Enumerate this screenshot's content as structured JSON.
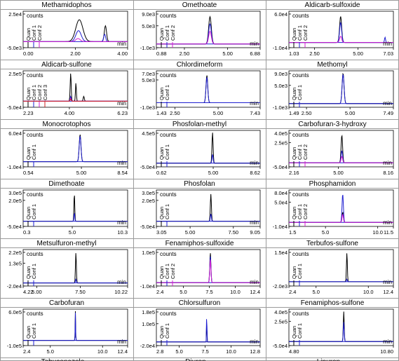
{
  "y_unit_label": "counts",
  "x_unit_label": "min",
  "colors": {
    "quan": "#000000",
    "conf1": "#1f1fd0",
    "conf2": "#d21fd2",
    "conf3": "#cc2222",
    "title_bg": "#ffffff",
    "grid_line": "#9a9a9a"
  },
  "bottom_row_partial_labels": [
    "Tebuconazole ...",
    "Diuron ...",
    "Linuron ..."
  ],
  "chart_data": [
    {
      "type": "line",
      "title": "Methamidophos",
      "x_ticks": [
        "0.00",
        "2.00",
        "4.00"
      ],
      "xlim": [
        0.0,
        4.0
      ],
      "y_ticks": [
        "2.5e4",
        "-5.0e3"
      ],
      "ylim": [
        -5000,
        25000
      ],
      "legend": [
        "Quan",
        "Conf 1",
        "Conf 2"
      ],
      "series": [
        {
          "name": "Quan",
          "peaks": [
            {
              "rt": 2.15,
              "height": 18000,
              "width": 0.32
            },
            {
              "rt": 3.15,
              "height": 13000,
              "width": 0.1
            }
          ]
        },
        {
          "name": "Conf 1",
          "peaks": [
            {
              "rt": 2.12,
              "height": 9000,
              "width": 0.24
            },
            {
              "rt": 3.12,
              "height": 6000,
              "width": 0.09
            }
          ]
        },
        {
          "name": "Conf 2",
          "peaks": [
            {
              "rt": 2.1,
              "height": 2500,
              "width": 0.2
            }
          ]
        }
      ]
    },
    {
      "type": "line",
      "title": "Omethoate",
      "x_ticks": [
        "0.88",
        "2.50",
        "5.00",
        "6.88"
      ],
      "xlim": [
        0.88,
        6.88
      ],
      "y_ticks": [
        "9.0e3",
        "5.0e3",
        "-1.0e3"
      ],
      "ylim": [
        -1000,
        9000
      ],
      "legend": [
        "Quan",
        "Conf 1",
        "Conf 2"
      ],
      "series": [
        {
          "name": "Quan",
          "peaks": [
            {
              "rt": 3.98,
              "height": 7500,
              "width": 0.18
            }
          ]
        },
        {
          "name": "Conf 1",
          "peaks": [
            {
              "rt": 3.98,
              "height": 5500,
              "width": 0.18
            }
          ]
        },
        {
          "name": "Conf 2",
          "peaks": [
            {
              "rt": 3.98,
              "height": 3500,
              "width": 0.18
            }
          ]
        }
      ]
    },
    {
      "type": "line",
      "title": "Aldicarb-sulfoxide",
      "x_ticks": [
        "1.03",
        "2.50",
        "5.00",
        "7.03"
      ],
      "xlim": [
        1.03,
        7.03
      ],
      "y_ticks": [
        "6.0e4",
        "-1.0e4"
      ],
      "ylim": [
        -10000,
        60000
      ],
      "legend": [
        "Quan",
        "Conf 1",
        "Conf 2"
      ],
      "series": [
        {
          "name": "Quan",
          "peaks": [
            {
              "rt": 4.0,
              "height": 50000,
              "width": 0.14
            }
          ]
        },
        {
          "name": "Conf 1",
          "peaks": [
            {
              "rt": 4.0,
              "height": 38000,
              "width": 0.14
            },
            {
              "rt": 6.55,
              "height": 10000,
              "width": 0.07
            }
          ]
        },
        {
          "name": "Conf 2",
          "peaks": [
            {
              "rt": 4.0,
              "height": 12000,
              "width": 0.14
            }
          ]
        }
      ]
    },
    {
      "type": "line",
      "title": "Aldicarb-sulfone",
      "x_ticks": [
        "2.23",
        "4.00",
        "6.23"
      ],
      "xlim": [
        2.23,
        6.23
      ],
      "y_ticks": [
        "2.5e5",
        "-5.0e4"
      ],
      "ylim": [
        -50000,
        250000
      ],
      "legend": [
        "Quan",
        "Conf 1",
        "Conf 2",
        "Conf 3"
      ],
      "series": [
        {
          "name": "Quan",
          "peaks": [
            {
              "rt": 4.05,
              "height": 230000,
              "width": 0.045
            },
            {
              "rt": 4.25,
              "height": 150000,
              "width": 0.04
            },
            {
              "rt": 4.55,
              "height": 40000,
              "width": 0.05
            }
          ]
        },
        {
          "name": "Conf 1",
          "peaks": [
            {
              "rt": 4.05,
              "height": 40000,
              "width": 0.045
            }
          ]
        },
        {
          "name": "Conf 2",
          "peaks": [
            {
              "rt": 4.05,
              "height": 25000,
              "width": 0.045
            }
          ]
        },
        {
          "name": "Conf 3",
          "peaks": [
            {
              "rt": 4.05,
              "height": 15000,
              "width": 0.045
            }
          ]
        }
      ]
    },
    {
      "type": "line",
      "title": "Chlordimeform",
      "x_ticks": [
        "1.43",
        "2.50",
        "5.00",
        "7.43"
      ],
      "xlim": [
        1.43,
        7.43
      ],
      "y_ticks": [
        "7.0e3",
        "5.0e3",
        "-1.0e3"
      ],
      "ylim": [
        -1000,
        7000
      ],
      "legend": [
        "Quan",
        "Conf 1"
      ],
      "series": [
        {
          "name": "Quan",
          "peaks": [
            {
              "rt": 4.35,
              "height": 6000,
              "width": 0.12
            }
          ]
        },
        {
          "name": "Conf 1",
          "peaks": [
            {
              "rt": 4.35,
              "height": 5600,
              "width": 0.12
            }
          ]
        }
      ]
    },
    {
      "type": "line",
      "title": "Methomyl",
      "x_ticks": [
        "1.49",
        "2.50",
        "5.00",
        "7.49"
      ],
      "xlim": [
        1.49,
        7.49
      ],
      "y_ticks": [
        "9.0e3",
        "5.0e3",
        "-1.0e3"
      ],
      "ylim": [
        -1000,
        9000
      ],
      "legend": [
        "Quan",
        "Conf 1"
      ],
      "series": [
        {
          "name": "Quan",
          "peaks": [
            {
              "rt": 4.6,
              "height": 8300,
              "width": 0.13
            }
          ]
        },
        {
          "name": "Conf 1",
          "peaks": [
            {
              "rt": 4.6,
              "height": 8000,
              "width": 0.13
            }
          ]
        }
      ]
    },
    {
      "type": "line",
      "title": "Monocrotophos",
      "x_ticks": [
        "0.54",
        "5.00",
        "8.54"
      ],
      "xlim": [
        0.54,
        8.54
      ],
      "y_ticks": [
        "6.0e4",
        "-1.0e4"
      ],
      "ylim": [
        -10000,
        60000
      ],
      "legend": [
        "Quan",
        "Conf 1"
      ],
      "series": [
        {
          "name": "Quan",
          "peaks": [
            {
              "rt": 4.9,
              "height": 52000,
              "width": 0.16
            }
          ]
        },
        {
          "name": "Conf 1",
          "peaks": [
            {
              "rt": 4.9,
              "height": 49000,
              "width": 0.16
            }
          ]
        }
      ]
    },
    {
      "type": "line",
      "title": "Phosfolan-methyl",
      "x_ticks": [
        "0.62",
        "5.00",
        "8.62"
      ],
      "xlim": [
        0.62,
        8.62
      ],
      "y_ticks": [
        "4.5e5",
        "-5.0e4"
      ],
      "ylim": [
        -50000,
        450000
      ],
      "legend": [
        "Quan",
        "Conf 1"
      ],
      "series": [
        {
          "name": "Quan",
          "peaks": [
            {
              "rt": 4.95,
              "height": 420000,
              "width": 0.1
            }
          ]
        },
        {
          "name": "Conf 1",
          "peaks": [
            {
              "rt": 4.95,
              "height": 120000,
              "width": 0.1
            }
          ]
        }
      ]
    },
    {
      "type": "line",
      "title": "Carbofuran-3-hydroxy",
      "x_ticks": [
        "2.16",
        "5.00",
        "8.16"
      ],
      "xlim": [
        2.16,
        8.16
      ],
      "y_ticks": [
        "4.0e5",
        "2.5e5",
        "-5.0e4"
      ],
      "ylim": [
        -50000,
        400000
      ],
      "legend": [
        "Quan",
        "Conf 1",
        "Conf 2"
      ],
      "series": [
        {
          "name": "Quan",
          "peaks": [
            {
              "rt": 5.2,
              "height": 340000,
              "width": 0.1
            }
          ]
        },
        {
          "name": "Conf 1",
          "peaks": [
            {
              "rt": 5.2,
              "height": 150000,
              "width": 0.1
            }
          ]
        },
        {
          "name": "Conf 2",
          "peaks": [
            {
              "rt": 5.2,
              "height": 80000,
              "width": 0.1
            }
          ]
        }
      ]
    },
    {
      "type": "line",
      "title": "Dimethoate",
      "x_ticks": [
        "0.3",
        "5.0",
        "10.3"
      ],
      "xlim": [
        0.3,
        10.3
      ],
      "y_ticks": [
        "3.0e5",
        "2.0e5",
        "-5.0e4"
      ],
      "ylim": [
        -50000,
        300000
      ],
      "legend": [
        "Quan",
        "Conf 1"
      ],
      "series": [
        {
          "name": "Quan",
          "peaks": [
            {
              "rt": 5.2,
              "height": 270000,
              "width": 0.09
            }
          ]
        },
        {
          "name": "Conf 1",
          "peaks": [
            {
              "rt": 5.2,
              "height": 80000,
              "width": 0.09
            }
          ]
        }
      ]
    },
    {
      "type": "line",
      "title": "Phosfolan",
      "x_ticks": [
        "3.05",
        "5.00",
        "7.50",
        "9.05"
      ],
      "xlim": [
        3.05,
        9.05
      ],
      "y_ticks": [
        "3.0e5",
        "2.0e5",
        "-5.0e4"
      ],
      "ylim": [
        -50000,
        300000
      ],
      "legend": [
        "Quan",
        "Conf 1"
      ],
      "series": [
        {
          "name": "Quan",
          "peaks": [
            {
              "rt": 6.2,
              "height": 260000,
              "width": 0.07
            }
          ]
        },
        {
          "name": "Conf 1",
          "peaks": [
            {
              "rt": 6.2,
              "height": 70000,
              "width": 0.07
            }
          ]
        }
      ]
    },
    {
      "type": "line",
      "title": "Phosphamidon",
      "x_ticks": [
        "1.5",
        "5.0",
        "10.0",
        "11.5"
      ],
      "xlim": [
        1.5,
        11.5
      ],
      "y_ticks": [
        "8.0e4",
        "5.0e4",
        "-1.0e4"
      ],
      "ylim": [
        -10000,
        80000
      ],
      "legend": [
        "Quan",
        "Conf 1",
        "Conf 2"
      ],
      "series": [
        {
          "name": "Quan",
          "peaks": [
            {
              "rt": 6.65,
              "height": 25000,
              "width": 0.15
            }
          ]
        },
        {
          "name": "Conf 1",
          "peaks": [
            {
              "rt": 6.65,
              "height": 70000,
              "width": 0.15
            }
          ]
        },
        {
          "name": "Conf 2",
          "peaks": [
            {
              "rt": 6.65,
              "height": 20000,
              "width": 0.15
            }
          ]
        }
      ]
    },
    {
      "type": "line",
      "title": "Metsulfuron-methyl",
      "x_ticks": [
        "4.22",
        "5.00",
        "7.50",
        "10.22"
      ],
      "xlim": [
        4.22,
        10.22
      ],
      "y_ticks": [
        "2.2e5",
        "1.3e5",
        "-2.0e4"
      ],
      "ylim": [
        -20000,
        220000
      ],
      "legend": [
        "Quan",
        "Conf 1"
      ],
      "series": [
        {
          "name": "Quan",
          "peaks": [
            {
              "rt": 7.25,
              "height": 200000,
              "width": 0.06
            }
          ]
        },
        {
          "name": "Conf 1",
          "peaks": [
            {
              "rt": 7.25,
              "height": 25000,
              "width": 0.06
            }
          ]
        }
      ]
    },
    {
      "type": "line",
      "title": "Fenamiphos-sulfoxide",
      "x_ticks": [
        "2.4",
        "5.0",
        "7.5",
        "10.0",
        "12.4"
      ],
      "xlim": [
        2.4,
        12.4
      ],
      "y_ticks": [
        "1.0e5",
        "-1.0e4"
      ],
      "ylim": [
        -10000,
        100000
      ],
      "legend": [
        "Quan",
        "Conf 1",
        "Conf 2"
      ],
      "series": [
        {
          "name": "Quan",
          "peaks": [
            {
              "rt": 7.6,
              "height": 90000,
              "width": 0.13
            }
          ]
        },
        {
          "name": "Conf 1",
          "peaks": [
            {
              "rt": 7.6,
              "height": 80000,
              "width": 0.13
            }
          ]
        },
        {
          "name": "Conf 2",
          "peaks": [
            {
              "rt": 7.6,
              "height": 70000,
              "width": 0.13
            }
          ]
        }
      ]
    },
    {
      "type": "line",
      "title": "Terbufos-sulfone",
      "x_ticks": [
        "2.4",
        "5.0",
        "10.0",
        "12.4"
      ],
      "xlim": [
        2.4,
        12.4
      ],
      "y_ticks": [
        "1.5e4",
        "-2.0e3"
      ],
      "ylim": [
        -2000,
        15000
      ],
      "legend": [
        "Quan",
        "Conf 1"
      ],
      "series": [
        {
          "name": "Quan",
          "peaks": [
            {
              "rt": 7.95,
              "height": 13500,
              "width": 0.1
            }
          ]
        },
        {
          "name": "Conf 1",
          "peaks": [
            {
              "rt": 7.95,
              "height": 1200,
              "width": 0.1
            }
          ]
        }
      ]
    },
    {
      "type": "line",
      "title": "Carbofuran",
      "x_ticks": [
        "2.4",
        "5.0",
        "10.0",
        "12.4"
      ],
      "xlim": [
        2.4,
        12.4
      ],
      "y_ticks": [
        "6.0e5",
        "-1.0e5"
      ],
      "ylim": [
        -100000,
        600000
      ],
      "legend": [
        "Quan",
        "Conf 1"
      ],
      "series": [
        {
          "name": "Quan",
          "peaks": [
            {
              "rt": 7.4,
              "height": 560000,
              "width": 0.05
            }
          ]
        },
        {
          "name": "Conf 1",
          "peaks": [
            {
              "rt": 7.4,
              "height": 530000,
              "width": 0.05
            }
          ]
        }
      ]
    },
    {
      "type": "line",
      "title": "Chlorsulfuron",
      "x_ticks": [
        "2.8",
        "5.0",
        "7.5",
        "10.0",
        "12.8"
      ],
      "xlim": [
        2.8,
        12.8
      ],
      "y_ticks": [
        "1.8e5",
        "1.0e5",
        "-2.0e4"
      ],
      "ylim": [
        -20000,
        180000
      ],
      "legend": [
        "Quan",
        "Conf 1"
      ],
      "series": [
        {
          "name": "Quan",
          "peaks": [
            {
              "rt": 7.65,
              "height": 120000,
              "width": 0.05
            }
          ]
        },
        {
          "name": "Conf 1",
          "peaks": [
            {
              "rt": 7.65,
              "height": 170000,
              "width": 0.05
            }
          ]
        }
      ]
    },
    {
      "type": "line",
      "title": "Fenamiphos-sulfone",
      "x_ticks": [
        "4.80",
        "10.80"
      ],
      "xlim": [
        4.8,
        10.8
      ],
      "y_ticks": [
        "4.0e5",
        "2.5e5",
        "-5.0e4"
      ],
      "ylim": [
        -50000,
        400000
      ],
      "legend": [
        "Quan",
        "Conf 1"
      ],
      "series": [
        {
          "name": "Quan",
          "peaks": [
            {
              "rt": 7.95,
              "height": 370000,
              "width": 0.06
            }
          ]
        },
        {
          "name": "Conf 1",
          "peaks": [
            {
              "rt": 7.95,
              "height": 240000,
              "width": 0.06
            }
          ]
        }
      ]
    }
  ]
}
